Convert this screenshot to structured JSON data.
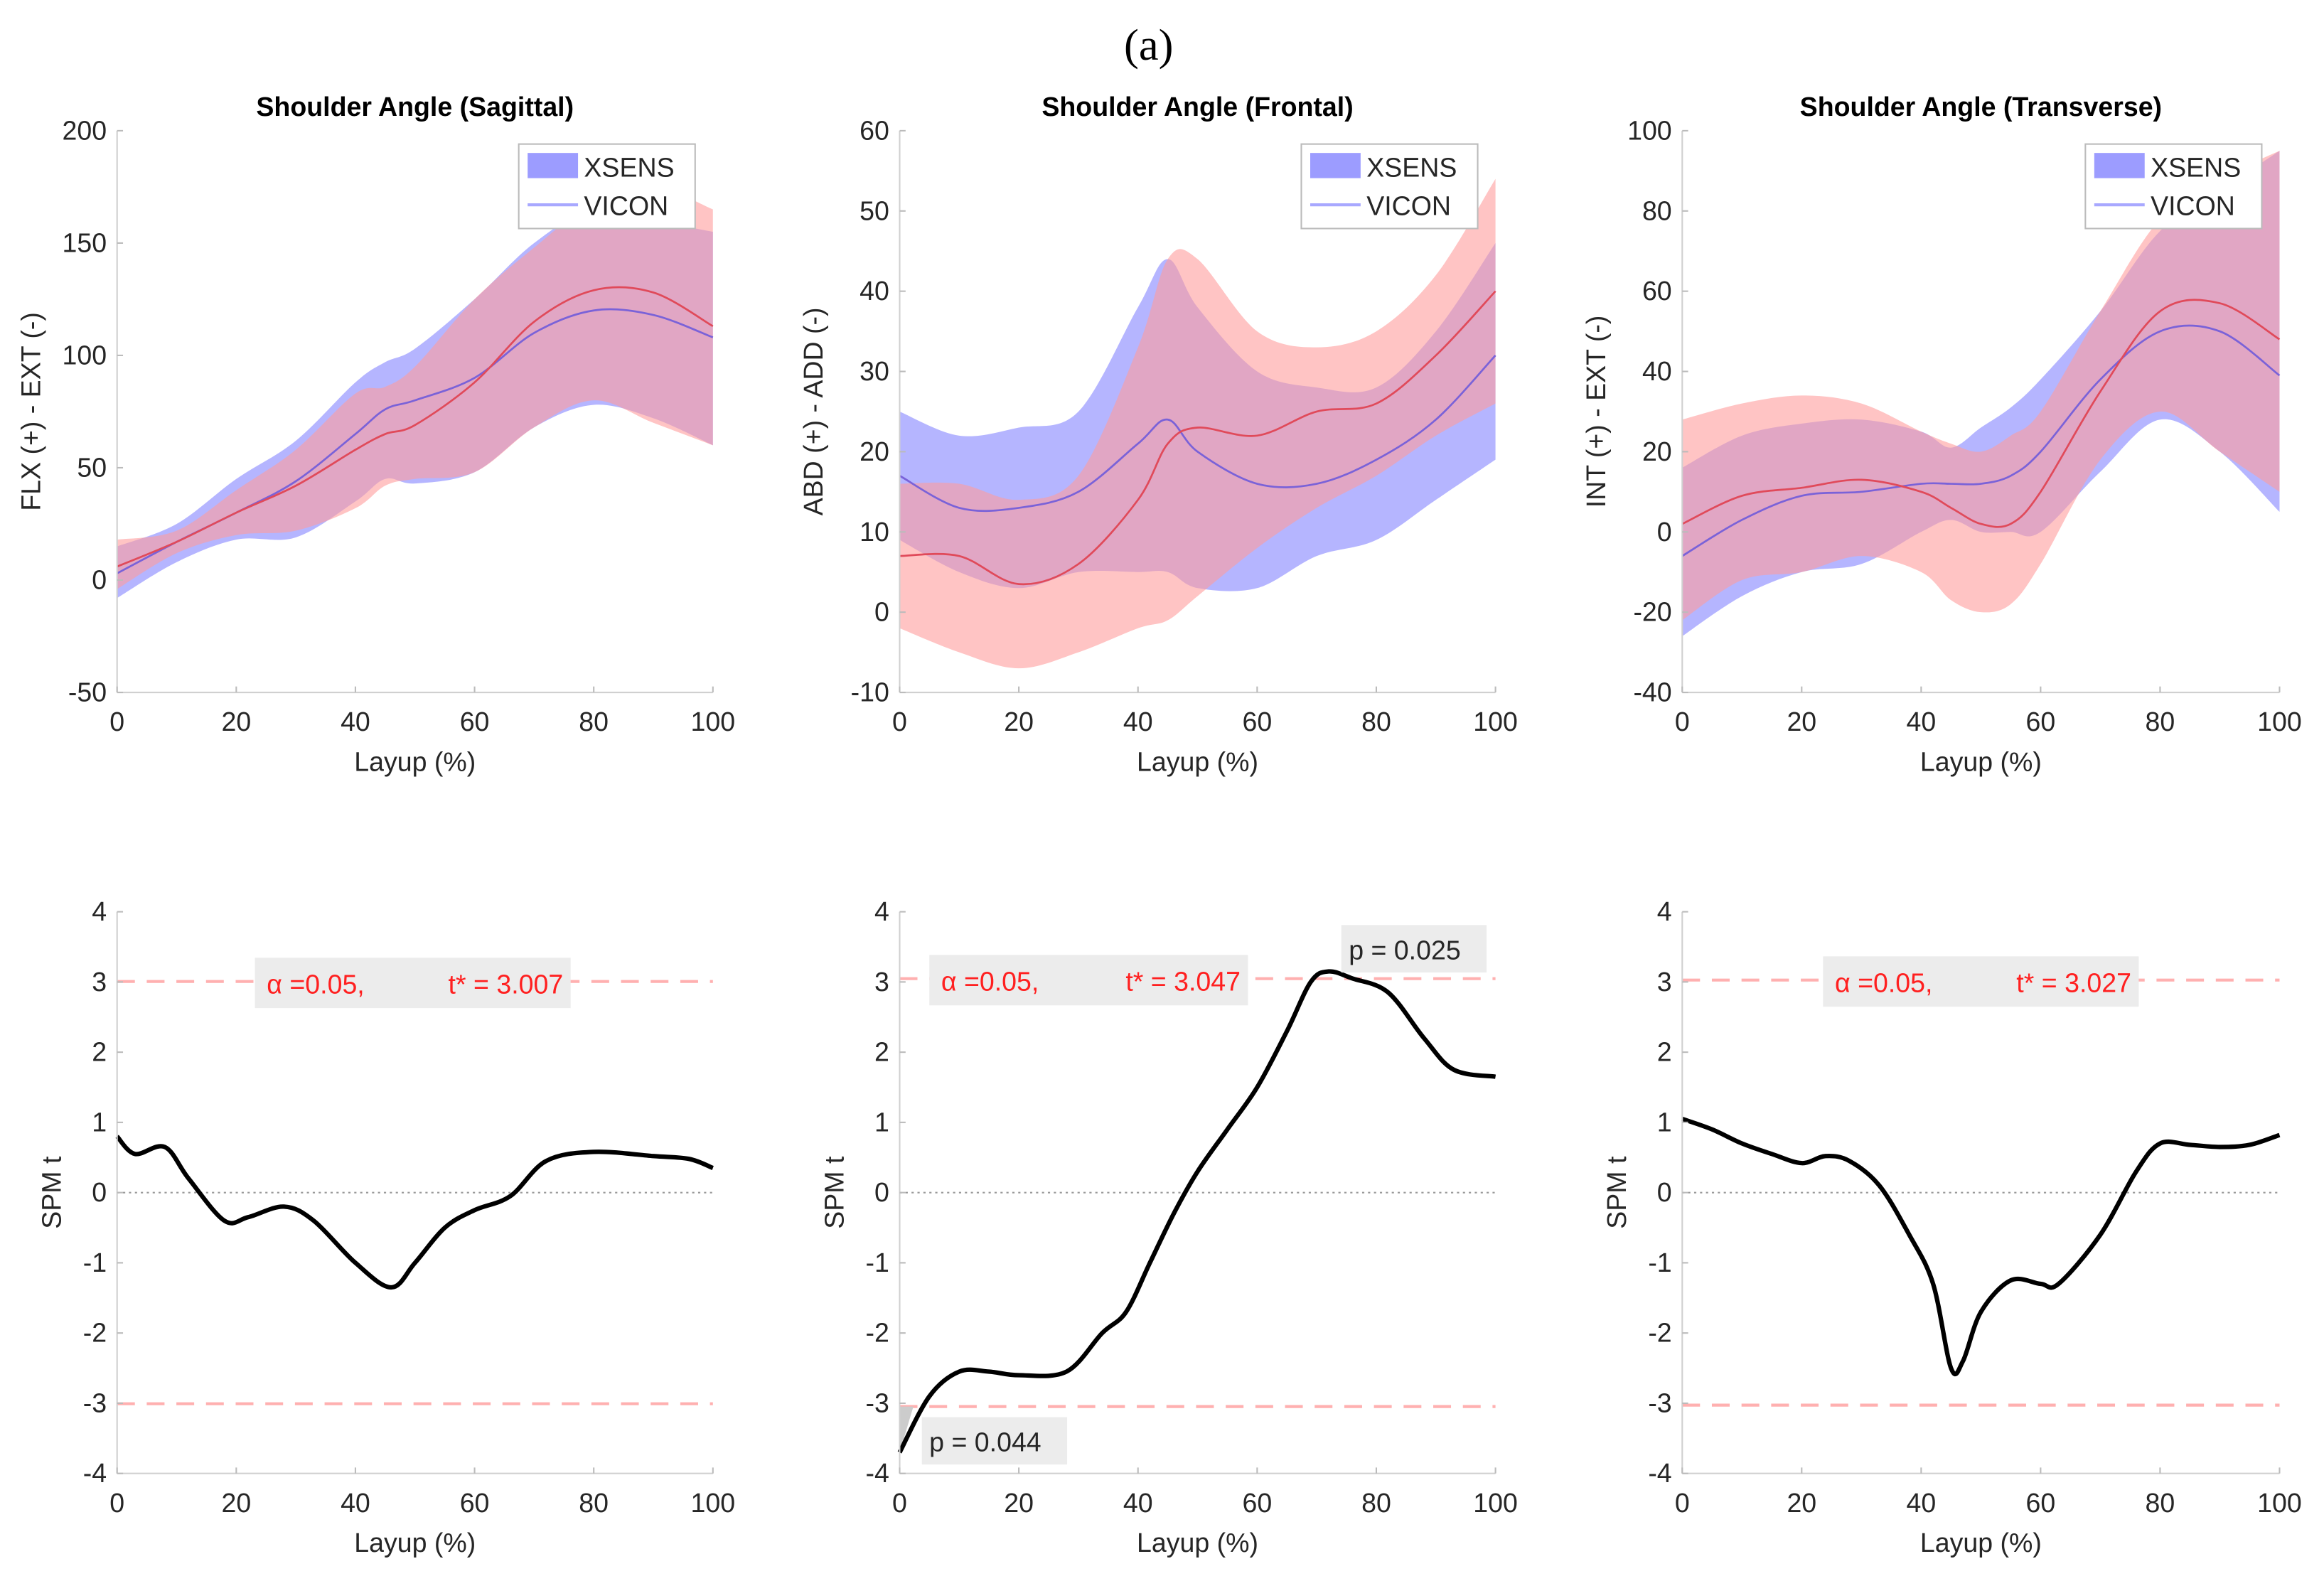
{
  "figure_label": "(a)",
  "colors": {
    "xsens_fill": "#9c9cff",
    "vicon_fill": "#ff9c9c",
    "xsens_line": "#7a62d8",
    "vicon_line": "#e04a5a",
    "spm_line": "#000000",
    "threshold": "#ffb0b0",
    "alpha_text": "#ff2020"
  },
  "chart_data": [
    {
      "type": "area",
      "title": "Shoulder Angle (Sagittal)",
      "xlabel": "Layup (%)",
      "ylabel": "FLX (+) - EXT (-)",
      "xlim": [
        0,
        100
      ],
      "ylim": [
        -50,
        200
      ],
      "xticks": [
        0,
        20,
        40,
        60,
        80,
        100
      ],
      "yticks": [
        -50,
        0,
        50,
        100,
        150,
        200
      ],
      "legend": "top-right",
      "series": [
        {
          "name": "XSENS",
          "x": [
            0,
            10,
            20,
            30,
            40,
            45,
            50,
            60,
            70,
            80,
            90,
            100
          ],
          "mean": [
            3,
            17,
            30,
            44,
            65,
            76,
            80,
            90,
            110,
            120,
            118,
            108
          ],
          "upper": [
            15,
            25,
            45,
            62,
            88,
            97,
            103,
            125,
            150,
            165,
            160,
            155
          ],
          "lower": [
            -8,
            8,
            18,
            19,
            35,
            45,
            43,
            48,
            68,
            78,
            72,
            60
          ]
        },
        {
          "name": "VICON",
          "x": [
            0,
            10,
            20,
            30,
            40,
            45,
            50,
            60,
            70,
            80,
            90,
            100
          ],
          "mean": [
            6,
            17,
            30,
            42,
            58,
            65,
            69,
            88,
            115,
            129,
            128,
            113
          ],
          "upper": [
            18,
            22,
            40,
            58,
            83,
            86,
            95,
            125,
            148,
            168,
            175,
            165
          ],
          "lower": [
            -4,
            12,
            20,
            22,
            32,
            42,
            45,
            48,
            68,
            80,
            70,
            60
          ]
        }
      ]
    },
    {
      "type": "area",
      "title": "Shoulder Angle (Frontal)",
      "xlabel": "Layup (%)",
      "ylabel": "ABD (+) - ADD (-)",
      "xlim": [
        0,
        100
      ],
      "ylim": [
        -10,
        60
      ],
      "xticks": [
        0,
        20,
        40,
        60,
        80,
        100
      ],
      "yticks": [
        -10,
        0,
        10,
        20,
        30,
        40,
        50,
        60
      ],
      "legend": "top-right",
      "series": [
        {
          "name": "XSENS",
          "x": [
            0,
            10,
            20,
            30,
            40,
            45,
            50,
            60,
            70,
            80,
            90,
            100
          ],
          "mean": [
            17,
            13,
            13,
            15,
            21,
            24,
            20,
            16,
            16,
            19,
            24,
            32
          ],
          "upper": [
            25,
            22,
            23,
            25,
            38,
            44,
            38,
            30,
            28,
            28,
            35,
            46
          ],
          "lower": [
            9,
            5,
            3,
            5,
            5,
            5,
            3,
            3,
            7,
            9,
            14,
            19
          ]
        },
        {
          "name": "VICON",
          "x": [
            0,
            10,
            20,
            30,
            40,
            45,
            50,
            60,
            70,
            80,
            90,
            100
          ],
          "mean": [
            7,
            7,
            3.5,
            6,
            14,
            21,
            23,
            22,
            25,
            26,
            32,
            40
          ],
          "upper": [
            16,
            16,
            14,
            17,
            33,
            44,
            44,
            35,
            33,
            35,
            42,
            54
          ],
          "lower": [
            -2,
            -5,
            -7,
            -5,
            -2,
            -1,
            2,
            8,
            13,
            17,
            22,
            26
          ]
        }
      ]
    },
    {
      "type": "area",
      "title": "Shoulder Angle (Transverse)",
      "xlabel": "Layup (%)",
      "ylabel": "INT (+) - EXT (-)",
      "xlim": [
        0,
        100
      ],
      "ylim": [
        -40,
        100
      ],
      "xticks": [
        0,
        20,
        40,
        60,
        80,
        100
      ],
      "yticks": [
        -40,
        -20,
        0,
        20,
        40,
        60,
        80,
        100
      ],
      "legend": "top-right",
      "series": [
        {
          "name": "XSENS",
          "x": [
            0,
            10,
            20,
            30,
            40,
            45,
            50,
            55,
            60,
            70,
            80,
            90,
            100
          ],
          "mean": [
            -6,
            3,
            9,
            10,
            12,
            12,
            12,
            14,
            20,
            38,
            50,
            50,
            39
          ],
          "upper": [
            16,
            24,
            27,
            28,
            25,
            21,
            26,
            31,
            38,
            55,
            75,
            85,
            95
          ],
          "lower": [
            -26,
            -16,
            -10,
            -8,
            0,
            3,
            0,
            0,
            0,
            15,
            28,
            20,
            5
          ]
        },
        {
          "name": "VICON",
          "x": [
            0,
            10,
            20,
            30,
            40,
            45,
            50,
            55,
            60,
            70,
            80,
            90,
            100
          ],
          "mean": [
            2,
            9,
            11,
            13,
            10,
            6,
            2,
            2,
            10,
            35,
            55,
            57,
            48
          ],
          "upper": [
            28,
            32,
            34,
            32,
            25,
            22,
            20,
            24,
            30,
            55,
            78,
            88,
            95
          ],
          "lower": [
            -22,
            -12,
            -10,
            -6,
            -10,
            -17,
            -20,
            -18,
            -8,
            18,
            30,
            20,
            10
          ]
        }
      ]
    },
    {
      "type": "line",
      "xlabel": "Layup (%)",
      "ylabel": "SPM t",
      "xlim": [
        0,
        100
      ],
      "ylim": [
        -4,
        4
      ],
      "xticks": [
        0,
        20,
        40,
        60,
        80,
        100
      ],
      "yticks": [
        -4,
        -3,
        -2,
        -1,
        0,
        1,
        2,
        3,
        4
      ],
      "threshold": 3.007,
      "alpha_label": "α  =0.05,",
      "tstar_label": "t* = 3.007",
      "annotations": [],
      "x": [
        0,
        3,
        8,
        12,
        18,
        22,
        28,
        33,
        40,
        46,
        50,
        55,
        60,
        66,
        72,
        80,
        90,
        96,
        100
      ],
      "y": [
        0.8,
        0.55,
        0.65,
        0.2,
        -0.4,
        -0.35,
        -0.2,
        -0.4,
        -1.0,
        -1.35,
        -1.0,
        -0.5,
        -0.25,
        -0.05,
        0.45,
        0.58,
        0.52,
        0.48,
        0.35
      ]
    },
    {
      "type": "line",
      "xlabel": "Layup (%)",
      "ylabel": "SPM t",
      "xlim": [
        0,
        100
      ],
      "ylim": [
        -4,
        4
      ],
      "xticks": [
        0,
        20,
        40,
        60,
        80,
        100
      ],
      "yticks": [
        -4,
        -3,
        -2,
        -1,
        0,
        1,
        2,
        3,
        4
      ],
      "threshold": 3.047,
      "alpha_label": "α  =0.05,",
      "tstar_label": "t* = 3.047",
      "annotations": [
        {
          "text": "p = 0.025",
          "at_x": 72,
          "position": "above"
        },
        {
          "text": "p = 0.044",
          "at_x": 2,
          "position": "below"
        }
      ],
      "x": [
        0,
        5,
        10,
        15,
        20,
        28,
        34,
        38,
        42,
        46,
        50,
        55,
        60,
        65,
        69,
        72,
        76,
        82,
        88,
        93,
        100
      ],
      "y": [
        -3.7,
        -2.9,
        -2.55,
        -2.55,
        -2.6,
        -2.55,
        -2.0,
        -1.7,
        -1.0,
        -0.3,
        0.3,
        0.9,
        1.5,
        2.3,
        3.0,
        3.15,
        3.05,
        2.85,
        2.2,
        1.75,
        1.65
      ]
    },
    {
      "type": "line",
      "xlabel": "Layup (%)",
      "ylabel": "SPM t",
      "xlim": [
        0,
        100
      ],
      "ylim": [
        -4,
        4
      ],
      "xticks": [
        0,
        20,
        40,
        60,
        80,
        100
      ],
      "yticks": [
        -4,
        -3,
        -2,
        -1,
        0,
        1,
        2,
        3,
        4
      ],
      "threshold": 3.027,
      "alpha_label": "α  =0.05,",
      "tstar_label": "t* = 3.027",
      "annotations": [],
      "x": [
        0,
        5,
        10,
        15,
        20,
        24,
        28,
        33,
        38,
        42,
        45,
        47,
        50,
        55,
        60,
        63,
        70,
        76,
        80,
        85,
        90,
        95,
        100
      ],
      "y": [
        1.05,
        0.9,
        0.7,
        0.55,
        0.42,
        0.52,
        0.45,
        0.1,
        -0.6,
        -1.3,
        -2.5,
        -2.4,
        -1.7,
        -1.25,
        -1.3,
        -1.3,
        -0.6,
        0.3,
        0.7,
        0.68,
        0.65,
        0.68,
        0.82
      ]
    }
  ]
}
